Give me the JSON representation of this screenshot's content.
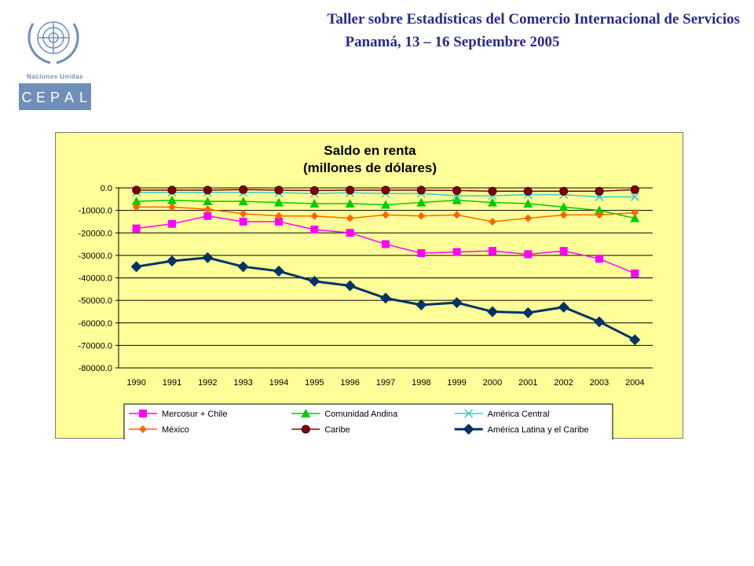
{
  "header": {
    "line1": "Taller sobre Estadísticas del Comercio Internacional de Servicios",
    "line2": "Panamá, 13 – 16 Septiembre 2005",
    "logo_text_top": "Naciones Unidas",
    "logo_letters": [
      "C",
      "E",
      "P",
      "A",
      "L"
    ]
  },
  "colors": {
    "title": "#2a2a8c",
    "chart_bg": "#ffff99",
    "logo_blue": "#6f8fb8"
  },
  "chart_data": {
    "type": "line",
    "title": [
      "Saldo en renta",
      "(millones de dólares)"
    ],
    "categories": [
      "1990",
      "1991",
      "1992",
      "1993",
      "1994",
      "1995",
      "1996",
      "1997",
      "1998",
      "1999",
      "2000",
      "2001",
      "2002",
      "2003",
      "2004"
    ],
    "y_ticks": [
      "0.0",
      "-10000.0",
      "-20000.0",
      "-30000.0",
      "-40000.0",
      "-50000.0",
      "-60000.0",
      "-70000.0",
      "-80000.0"
    ],
    "ylim": [
      -80000,
      0
    ],
    "grid": true,
    "legend_position": "bottom",
    "series": [
      {
        "name": "Mercosur + Chile",
        "color": "#ff00ff",
        "marker": "square",
        "width": 1.5,
        "values": [
          -18000,
          -16000,
          -12500,
          -15000,
          -15000,
          -18500,
          -20000,
          -25000,
          -29000,
          -28500,
          -28000,
          -29500,
          -28000,
          -31500,
          -38000
        ]
      },
      {
        "name": "Comunidad Andina",
        "color": "#00cc00",
        "marker": "triangle",
        "width": 1.5,
        "values": [
          -6000,
          -5500,
          -6000,
          -6000,
          -6500,
          -7000,
          -7000,
          -7500,
          -6500,
          -5500,
          -6500,
          -7000,
          -8500,
          -10000,
          -13500
        ]
      },
      {
        "name": "América Central",
        "color": "#33cccc",
        "marker": "x",
        "width": 1.5,
        "values": [
          -2000,
          -2000,
          -2000,
          -2000,
          -2200,
          -2500,
          -2200,
          -2500,
          -2500,
          -3500,
          -3500,
          -3000,
          -3000,
          -4000,
          -4000
        ]
      },
      {
        "name": "México",
        "color": "#ff6600",
        "marker": "diamond",
        "width": 1.5,
        "values": [
          -8500,
          -8500,
          -9500,
          -11500,
          -12500,
          -12500,
          -13500,
          -12000,
          -12500,
          -12000,
          -15000,
          -13500,
          -12000,
          -12000,
          -11000
        ]
      },
      {
        "name": "Caribe",
        "color": "#800000",
        "marker": "circle",
        "width": 1.5,
        "values": [
          -1000,
          -1000,
          -1000,
          -800,
          -1000,
          -1200,
          -1000,
          -1000,
          -1000,
          -1200,
          -1500,
          -1500,
          -1500,
          -1500,
          -800
        ]
      },
      {
        "name": "América Latina y el Caribe",
        "color": "#003366",
        "marker": "diamond-big",
        "width": 3,
        "values": [
          -35000,
          -32500,
          -31000,
          -35000,
          -37000,
          -41500,
          -43500,
          -49000,
          -52000,
          -51000,
          -55000,
          -55500,
          -53000,
          -59500,
          -67500
        ]
      }
    ]
  }
}
